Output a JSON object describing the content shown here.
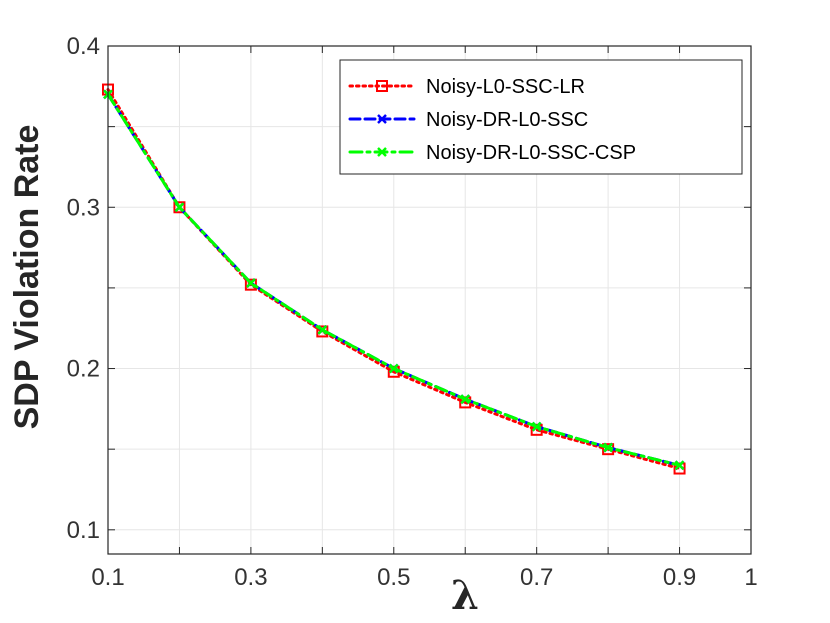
{
  "chart_data": {
    "type": "line",
    "xlabel": "λ",
    "ylabel": "SDP Violation Rate",
    "xlim": [
      0.1,
      1.0
    ],
    "ylim": [
      0.085,
      0.4
    ],
    "xticks": [
      0.1,
      0.3,
      0.5,
      0.7,
      0.9,
      1
    ],
    "xtick_labels": [
      "0.1",
      "0.3",
      "0.5",
      "0.7",
      "0.9",
      "1"
    ],
    "xgrid": [
      0.1,
      0.2,
      0.3,
      0.4,
      0.5,
      0.6,
      0.7,
      0.8,
      0.9
    ],
    "yticks": [
      0.1,
      0.2,
      0.3,
      0.4
    ],
    "ytick_labels": [
      "0.1",
      "0.2",
      "0.3",
      "0.4"
    ],
    "yminor": [
      0.15,
      0.25,
      0.35
    ],
    "grid": true,
    "legend_position": "top-right",
    "x": [
      0.1,
      0.2,
      0.3,
      0.4,
      0.5,
      0.6,
      0.7,
      0.8,
      0.9
    ],
    "series": [
      {
        "name": "Noisy-L0-SSC-LR",
        "values": [
          0.373,
          0.3,
          0.252,
          0.223,
          0.198,
          0.179,
          0.162,
          0.15,
          0.138
        ],
        "color": "#ff0000",
        "line_style": "dotted",
        "marker": "square"
      },
      {
        "name": "Noisy-DR-L0-SSC",
        "values": [
          0.37,
          0.3,
          0.253,
          0.224,
          0.2,
          0.181,
          0.164,
          0.151,
          0.14
        ],
        "color": "#0000ff",
        "line_style": "dashed",
        "marker": "x"
      },
      {
        "name": "Noisy-DR-L0-SSC-CSP",
        "values": [
          0.37,
          0.3,
          0.253,
          0.224,
          0.2,
          0.181,
          0.164,
          0.151,
          0.14
        ],
        "color": "#00ff00",
        "line_style": "dashdot",
        "marker": "x"
      }
    ]
  }
}
